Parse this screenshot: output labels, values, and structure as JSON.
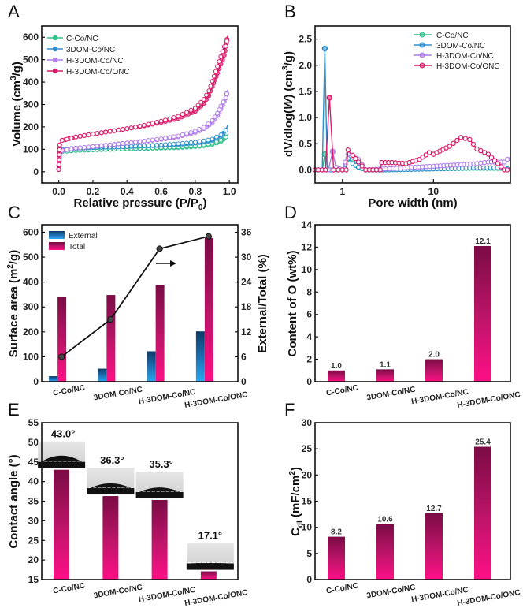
{
  "chart_data": [
    {
      "panel": "A",
      "type": "line",
      "title": "",
      "xlabel": "Relative pressure (P/P0)",
      "ylabel": "Volume (cm3/g)",
      "xlim": [
        -0.1,
        1.05
      ],
      "ylim": [
        -50,
        650
      ],
      "xticks": [
        "0.0",
        "0.2",
        "0.4",
        "0.6",
        "0.8",
        "1.0"
      ],
      "yticks": [
        "0",
        "100",
        "200",
        "300",
        "400",
        "500",
        "600"
      ],
      "legend": "top-left",
      "series": [
        {
          "name": "C-Co/NC",
          "color": "#2ec08a",
          "x": [
            0,
            0.005,
            0.02,
            0.1,
            0.2,
            0.3,
            0.4,
            0.5,
            0.6,
            0.7,
            0.8,
            0.85,
            0.9,
            0.95,
            0.98,
            0.99
          ],
          "y": [
            10,
            80,
            90,
            95,
            98,
            100,
            102,
            104,
            106,
            108,
            112,
            116,
            122,
            135,
            155,
            165
          ]
        },
        {
          "name": "3DOM-Co/NC",
          "color": "#2e8fd0",
          "x": [
            0,
            0.005,
            0.02,
            0.1,
            0.2,
            0.3,
            0.4,
            0.5,
            0.6,
            0.7,
            0.8,
            0.85,
            0.9,
            0.95,
            0.98,
            0.99
          ],
          "y": [
            10,
            90,
            100,
            105,
            108,
            110,
            112,
            115,
            118,
            122,
            128,
            133,
            140,
            158,
            185,
            208
          ]
        },
        {
          "name": "H-3DOM-Co/NC",
          "color": "#b07ee8",
          "x": [
            0,
            0.005,
            0.02,
            0.1,
            0.2,
            0.3,
            0.4,
            0.5,
            0.6,
            0.7,
            0.8,
            0.85,
            0.9,
            0.93,
            0.95,
            0.98,
            0.99
          ],
          "y": [
            10,
            85,
            95,
            105,
            112,
            120,
            128,
            136,
            145,
            156,
            175,
            192,
            220,
            250,
            280,
            330,
            365
          ]
        },
        {
          "name": "H-3DOM-Co/ONC",
          "color": "#d81b6a",
          "x": [
            0,
            0.005,
            0.02,
            0.1,
            0.2,
            0.3,
            0.4,
            0.5,
            0.6,
            0.7,
            0.8,
            0.85,
            0.88,
            0.9,
            0.93,
            0.95,
            0.97,
            0.98,
            0.99
          ],
          "y": [
            10,
            120,
            140,
            155,
            168,
            180,
            192,
            205,
            220,
            238,
            270,
            305,
            340,
            380,
            440,
            480,
            520,
            560,
            605
          ]
        }
      ]
    },
    {
      "panel": "B",
      "type": "line",
      "title": "",
      "xlabel": "Pore width (nm)",
      "ylabel": "dV/dlog(W) (cm3/g)",
      "xscale": "log",
      "xlim": [
        0.5,
        70
      ],
      "ylim": [
        -0.25,
        2.75
      ],
      "xticks": [
        "1",
        "10"
      ],
      "yticks": [
        "0.0",
        "0.5",
        "1.0",
        "1.5",
        "2.0",
        "2.5"
      ],
      "legend": "top-right",
      "series": [
        {
          "name": "C-Co/NC",
          "color": "#2ec08a",
          "x": [
            0.5,
            0.6,
            0.64,
            0.7,
            0.8,
            1.0,
            1.15,
            1.3,
            1.5,
            1.8,
            3,
            10,
            30,
            60,
            70
          ],
          "y": [
            0,
            0,
            0.3,
            0,
            0,
            0,
            0.2,
            0.15,
            0.05,
            0,
            0,
            0.02,
            0.03,
            0.03,
            0
          ]
        },
        {
          "name": "3DOM-Co/NC",
          "color": "#2e8fd0",
          "x": [
            0.5,
            0.6,
            0.64,
            0.68,
            0.8,
            1.0,
            1.15,
            1.3,
            1.5,
            1.8,
            3,
            10,
            30,
            60,
            70
          ],
          "y": [
            0,
            0,
            2.32,
            0,
            0,
            0,
            0.22,
            0.12,
            0.05,
            0,
            0,
            0.02,
            0.04,
            0.04,
            0
          ]
        },
        {
          "name": "H-3DOM-Co/NC",
          "color": "#b07ee8",
          "x": [
            0.5,
            0.6,
            0.7,
            0.78,
            0.85,
            1.0,
            1.15,
            1.3,
            1.5,
            1.8,
            3,
            10,
            20,
            30,
            40,
            60,
            70
          ],
          "y": [
            0,
            0,
            0,
            0.35,
            0.05,
            0,
            0.3,
            0.25,
            0.2,
            0,
            0.02,
            0.07,
            0.1,
            0.12,
            0.15,
            0.15,
            0.25
          ]
        },
        {
          "name": "H-3DOM-Co/ONC",
          "color": "#d81b6a",
          "x": [
            0.5,
            0.65,
            0.72,
            0.8,
            0.9,
            1.1,
            1.15,
            1.3,
            1.5,
            1.8,
            2.6,
            2.7,
            3.5,
            5,
            7,
            9,
            10,
            15,
            20,
            25,
            30,
            40,
            60,
            70
          ],
          "y": [
            0,
            0,
            1.38,
            0,
            0,
            0,
            0.38,
            0.28,
            0.15,
            0,
            0,
            0.14,
            0.14,
            0.12,
            0.2,
            0.33,
            0.3,
            0.45,
            0.62,
            0.58,
            0.4,
            0.3,
            0,
            0
          ]
        }
      ]
    },
    {
      "panel": "C",
      "type": "bar",
      "title": "",
      "xlabel": "",
      "ylabel": "Surface area (m2/g)",
      "y2label": "External/Total (%)",
      "categories": [
        "C-Co/NC",
        "3DOM-Co/NC",
        "H-3DOM-Co/NC",
        "H-3DOM-Co/ONC"
      ],
      "ylim": [
        0,
        630
      ],
      "y2lim": [
        0,
        37.8
      ],
      "yticks": [
        "0",
        "100",
        "200",
        "300",
        "400",
        "500",
        "600"
      ],
      "y2ticks": [
        "0",
        "6",
        "12",
        "18",
        "24",
        "30",
        "36"
      ],
      "legend": "top-left",
      "series": [
        {
          "name": "External",
          "color": "#1e88d8",
          "values": [
            22,
            52,
            122,
            202
          ]
        },
        {
          "name": "Total",
          "color": "#e0177a",
          "values": [
            342,
            348,
            388,
            576
          ]
        },
        {
          "name": "External/Total",
          "axis": "right",
          "type": "line",
          "color": "#111",
          "values": [
            6,
            15,
            32,
            35
          ]
        }
      ],
      "annotation": "arrow-right"
    },
    {
      "panel": "D",
      "type": "bar",
      "title": "",
      "xlabel": "",
      "ylabel": "Content of O (wt%)",
      "categories": [
        "C-Co/NC",
        "3DOM-Co/NC",
        "H-3DOM-Co/NC",
        "H-3DOM-Co/ONC"
      ],
      "values": [
        1.0,
        1.1,
        2.0,
        12.1
      ],
      "labels": [
        "1.0",
        "1.1",
        "2.0",
        "12.1"
      ],
      "ylim": [
        0,
        14
      ],
      "yticks": [
        "0",
        "2",
        "4",
        "6",
        "8",
        "10",
        "12",
        "14"
      ]
    },
    {
      "panel": "E",
      "type": "bar",
      "title": "",
      "xlabel": "",
      "ylabel": "Contact angle (°)",
      "categories": [
        "C-Co/NC",
        "3DOM-Co/NC",
        "H-3DOM-Co/NC",
        "H-3DOM-Co/ONC"
      ],
      "values": [
        43.0,
        36.3,
        35.3,
        17.1
      ],
      "labels": [
        "43.0°",
        "36.3°",
        "35.3°",
        "17.1°"
      ],
      "ylim": [
        15,
        55
      ],
      "yticks": [
        "15",
        "20",
        "25",
        "30",
        "35",
        "40",
        "45",
        "50",
        "55"
      ]
    },
    {
      "panel": "F",
      "type": "bar",
      "title": "",
      "xlabel": "",
      "ylabel": "Cdl (mF/cm2)",
      "categories": [
        "C-Co/NC",
        "3DOM-Co/NC",
        "H-3DOM-Co/NC",
        "H-3DOM-Co/ONC"
      ],
      "values": [
        8.2,
        10.6,
        12.7,
        25.4
      ],
      "labels": [
        "8.2",
        "10.6",
        "12.7",
        "25.4"
      ],
      "ylim": [
        0,
        30
      ],
      "yticks": [
        "0",
        "5",
        "10",
        "15",
        "20",
        "25",
        "30"
      ]
    }
  ],
  "panel_labels": [
    "A",
    "B",
    "C",
    "D",
    "E",
    "F"
  ],
  "axis_text": {
    "a_y": "Volume (cm",
    "a_y_sup": "3",
    "a_y_end": "/g)",
    "a_x": "Relative pressure (P/P",
    "a_x_sub": "0",
    "a_x_end": ")",
    "b_y1": "dV/dlog(",
    "b_y_w": "W",
    "b_y2": ") (cm",
    "b_y_sup": "3",
    "b_y_end": "/g)",
    "b_x": "Pore width (nm)",
    "c_y": "Surface area (m",
    "c_y_sup": "2",
    "c_y_end": "/g)",
    "c_y2": "External/Total (%)",
    "d_y": "Content of O (wt%)",
    "e_y": "Contact angle (°)",
    "f_y_c": "C",
    "f_y_sub": "dl",
    "f_y_end": " (mF/cm",
    "f_y_sup": "2",
    "f_y_close": ")"
  }
}
